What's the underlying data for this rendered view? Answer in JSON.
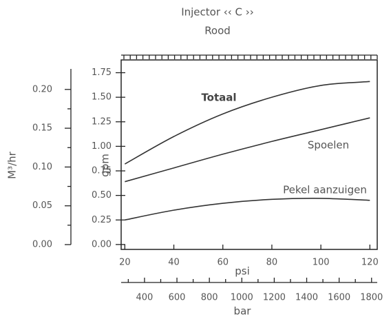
{
  "chart_data": {
    "type": "line",
    "title": "Injector ‹‹ C ››",
    "subtitle": "Rood",
    "xlabel": "psi",
    "ylabel": "gpm",
    "y2label": "M³/hr",
    "x2label": "bar",
    "x": [
      20,
      40,
      60,
      80,
      100,
      120
    ],
    "series": [
      {
        "name": "Totaal",
        "color": "#333333",
        "values": [
          0.82,
          1.1,
          1.33,
          1.5,
          1.62,
          1.66
        ]
      },
      {
        "name": "Spoelen",
        "color": "#333333",
        "values": [
          0.64,
          0.78,
          0.92,
          1.05,
          1.17,
          1.29
        ]
      },
      {
        "name": "Pekel aanzuigen",
        "color": "#333333",
        "values": [
          0.25,
          0.35,
          0.42,
          0.46,
          0.47,
          0.45
        ]
      }
    ],
    "xlim": [
      18.5,
      123
    ],
    "xticks": [
      20,
      40,
      60,
      80,
      100,
      120
    ],
    "ylim": [
      -0.05,
      1.88
    ],
    "yticks": [
      {
        "value": 0,
        "label": "0.00"
      },
      {
        "value": 0.25,
        "label": "0.25"
      },
      {
        "value": 0.5,
        "label": "0.50"
      },
      {
        "value": 0.75,
        "label": "0.75"
      },
      {
        "value": 1,
        "label": "1.00"
      },
      {
        "value": 1.25,
        "label": "1.25"
      },
      {
        "value": 1.5,
        "label": "1.50"
      },
      {
        "value": 1.75,
        "label": "1.75"
      }
    ],
    "y2lim": [
      -0.0062,
      0.238
    ],
    "y2ticks": [
      {
        "value": 0,
        "label": "0.00"
      },
      {
        "value": 0.05,
        "label": "0.05"
      },
      {
        "value": 0.1,
        "label": "0.10"
      },
      {
        "value": 0.15,
        "label": "0.15"
      },
      {
        "value": 0.2,
        "label": "0.20"
      }
    ],
    "y2minorticks": [
      0.025,
      0.075,
      0.125,
      0.175
    ],
    "x2lim": [
      256,
      1835
    ],
    "x2ticks": [
      400,
      600,
      800,
      1000,
      1200,
      1400,
      1600,
      1800
    ],
    "x2minorticks": [
      300,
      500,
      700,
      900,
      1100,
      1300,
      1500,
      1700
    ]
  }
}
